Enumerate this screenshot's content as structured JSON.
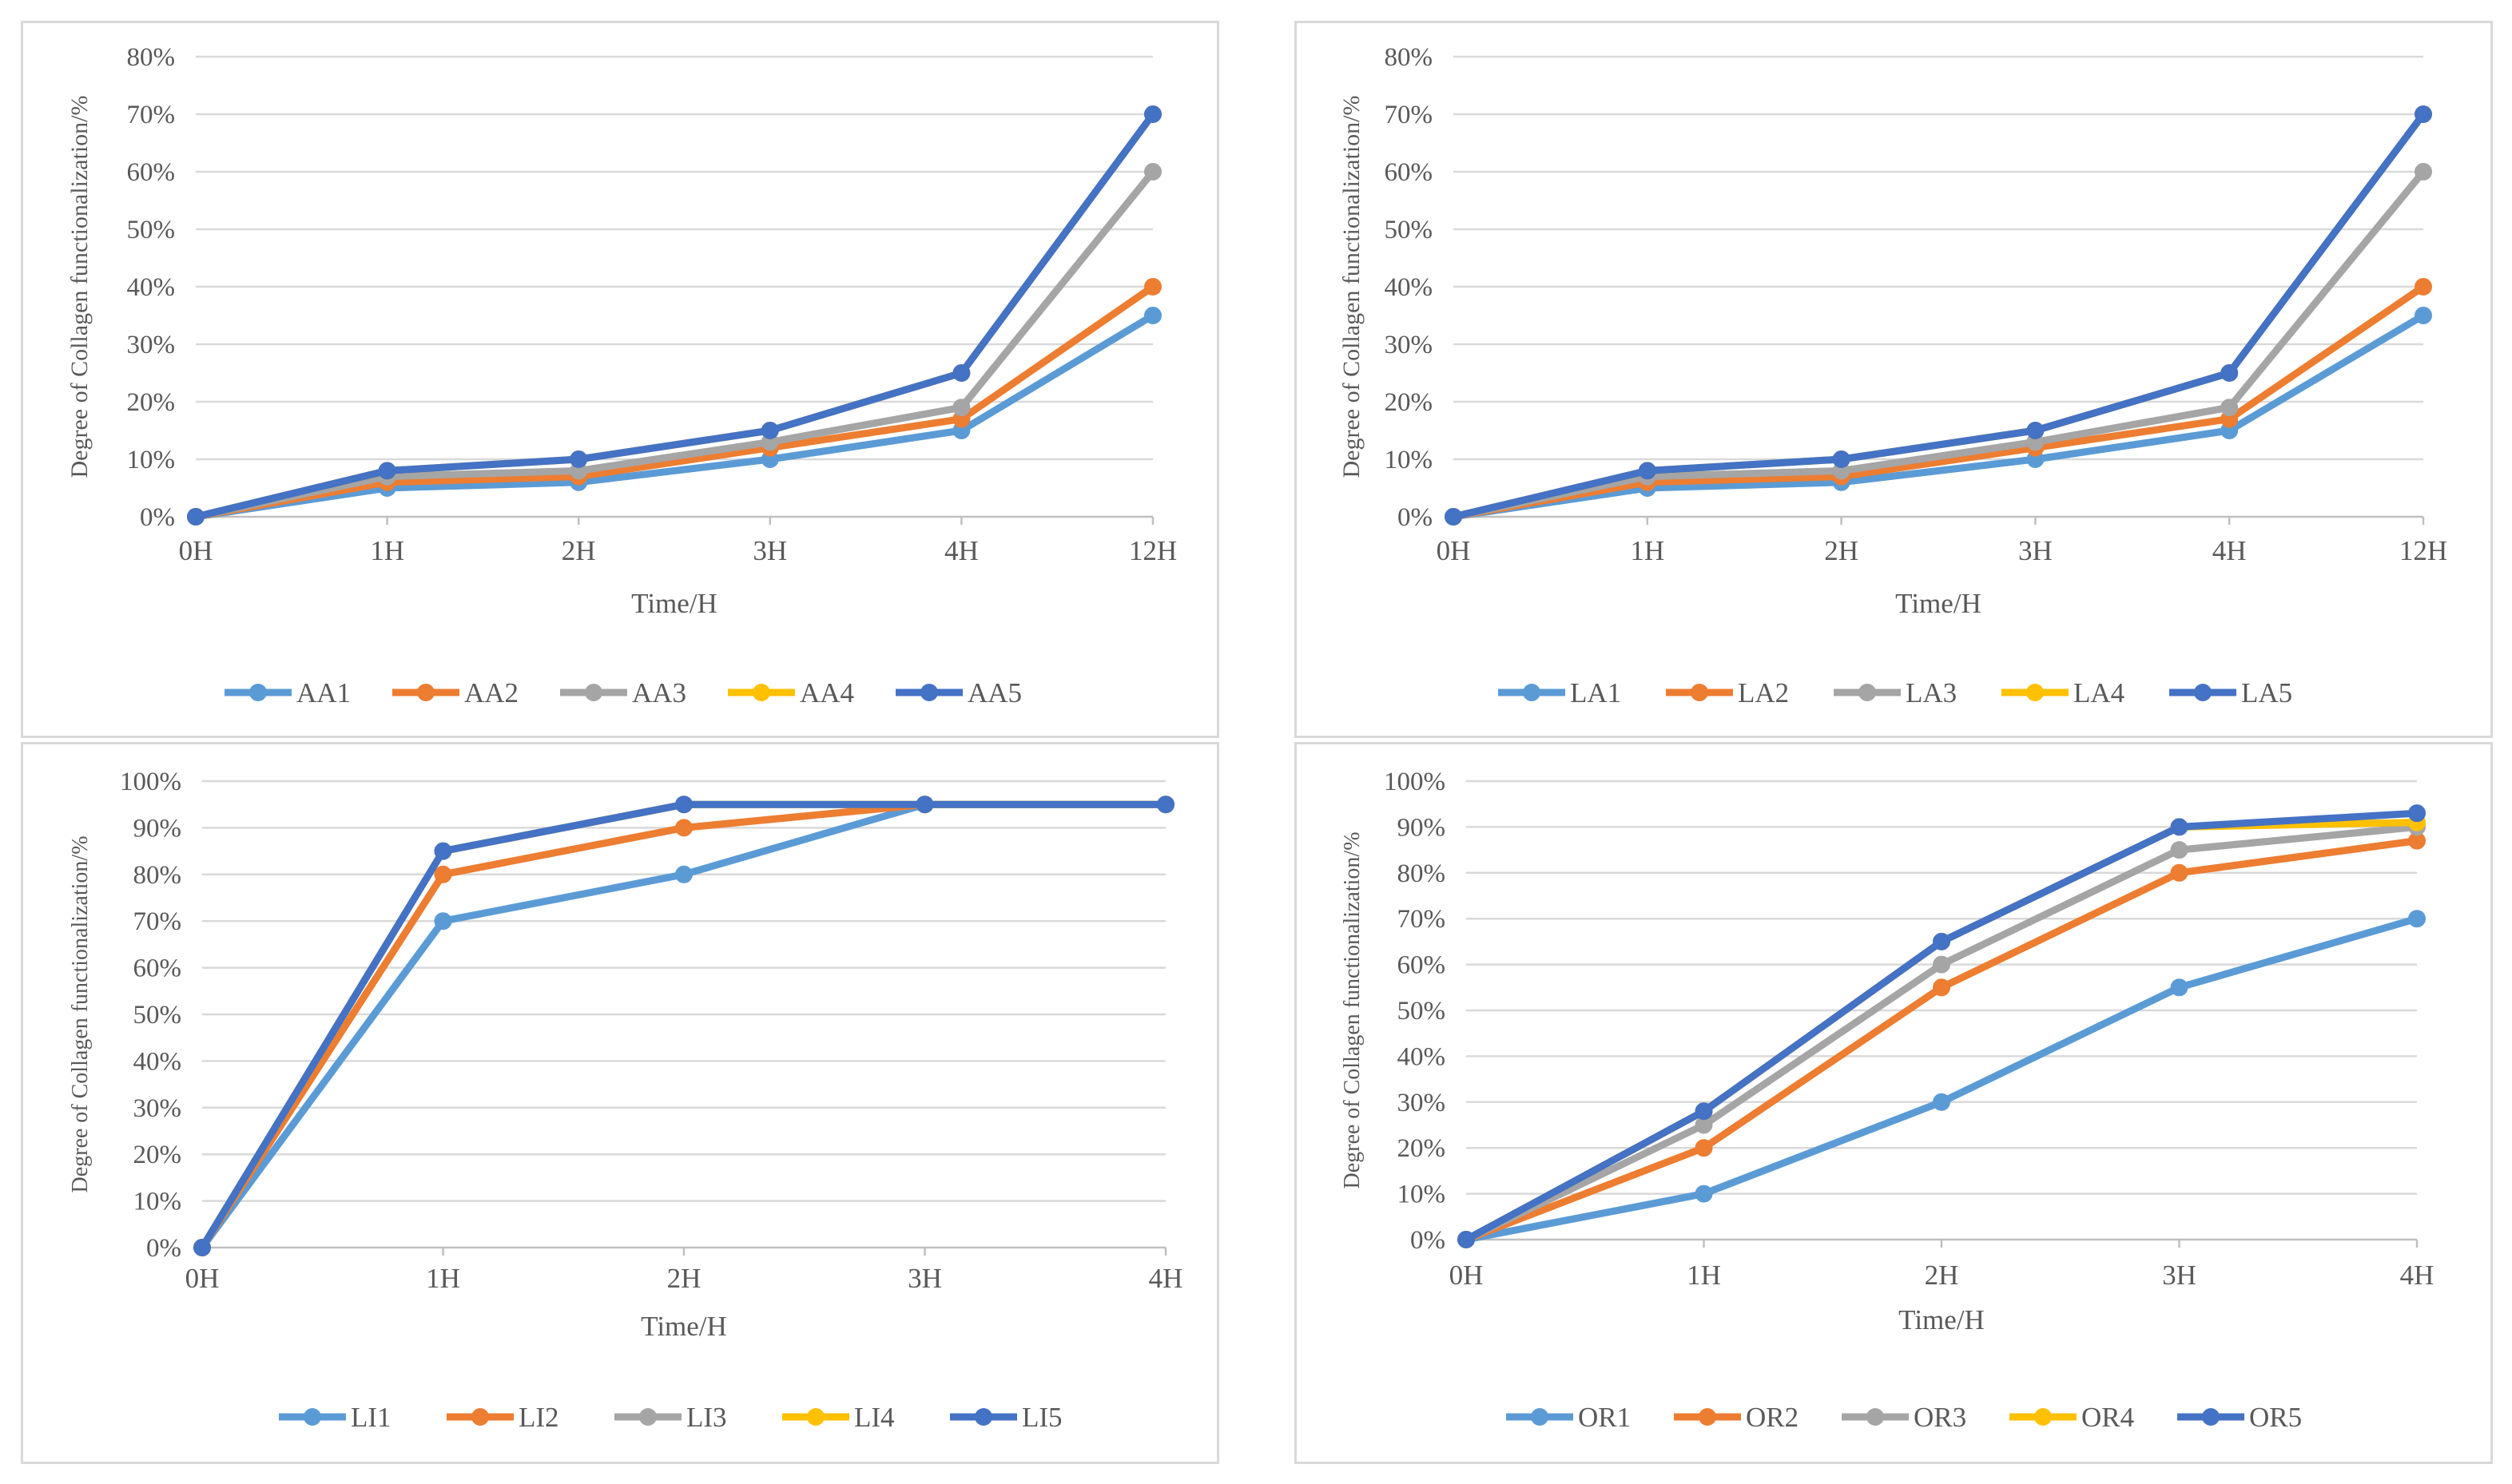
{
  "colors": [
    "#5B9BD5",
    "#ED7D31",
    "#A5A5A5",
    "#FFC000",
    "#4472C4"
  ],
  "charts": [
    {
      "type": "line",
      "xlabel": "Time/H",
      "ylabel": "Degree of Collagen functionalization/%",
      "x": [
        "0H",
        "1H",
        "2H",
        "3H",
        "4H",
        "12H"
      ],
      "yticks": [
        "0%",
        "10%",
        "20%",
        "30%",
        "40%",
        "50%",
        "60%",
        "70%",
        "80%"
      ],
      "ylim": [
        0,
        80
      ],
      "grid": true,
      "legend_position": "bottom",
      "series": [
        {
          "name": "AA1",
          "values": [
            0,
            5,
            6,
            10,
            15,
            35
          ]
        },
        {
          "name": "AA2",
          "values": [
            0,
            6,
            7,
            12,
            17,
            40
          ]
        },
        {
          "name": "AA3",
          "values": [
            0,
            7,
            8,
            13,
            19,
            60
          ]
        },
        {
          "name": "AA4",
          "values": [
            0,
            8,
            10,
            15,
            25,
            70
          ]
        },
        {
          "name": "AA5",
          "values": [
            0,
            8,
            10,
            15,
            25,
            70
          ]
        }
      ]
    },
    {
      "type": "line",
      "xlabel": "Time/H",
      "ylabel": "Degree of Collagen functionalization/%",
      "x": [
        "0H",
        "1H",
        "2H",
        "3H",
        "4H",
        "12H"
      ],
      "yticks": [
        "0%",
        "10%",
        "20%",
        "30%",
        "40%",
        "50%",
        "60%",
        "70%",
        "80%"
      ],
      "ylim": [
        0,
        80
      ],
      "grid": true,
      "legend_position": "bottom",
      "series": [
        {
          "name": "LA1",
          "values": [
            0,
            5,
            6,
            10,
            15,
            35
          ]
        },
        {
          "name": "LA2",
          "values": [
            0,
            6,
            7,
            12,
            17,
            40
          ]
        },
        {
          "name": "LA3",
          "values": [
            0,
            7,
            8,
            13,
            19,
            60
          ]
        },
        {
          "name": "LA4",
          "values": [
            0,
            8,
            10,
            15,
            25,
            70
          ]
        },
        {
          "name": "LA5",
          "values": [
            0,
            8,
            10,
            15,
            25,
            70
          ]
        }
      ]
    },
    {
      "type": "line",
      "xlabel": "Time/H",
      "ylabel": "Degree of Collagen functionalization/%",
      "x": [
        "0H",
        "1H",
        "2H",
        "3H",
        "4H"
      ],
      "yticks": [
        "0%",
        "10%",
        "20%",
        "30%",
        "40%",
        "50%",
        "60%",
        "70%",
        "80%",
        "90%",
        "100%"
      ],
      "ylim": [
        0,
        100
      ],
      "grid": true,
      "legend_position": "bottom",
      "series": [
        {
          "name": "LI1",
          "values": [
            0,
            70,
            80,
            95,
            95
          ]
        },
        {
          "name": "LI2",
          "values": [
            0,
            80,
            90,
            95,
            95
          ]
        },
        {
          "name": "LI3",
          "values": [
            0,
            85,
            95,
            95,
            95
          ]
        },
        {
          "name": "LI4",
          "values": [
            0,
            85,
            95,
            95,
            95
          ]
        },
        {
          "name": "LI5",
          "values": [
            0,
            85,
            95,
            95,
            95
          ]
        }
      ]
    },
    {
      "type": "line",
      "xlabel": "Time/H",
      "ylabel": "Degree of Collagen functionalization/%",
      "x": [
        "0H",
        "1H",
        "2H",
        "3H",
        "4H"
      ],
      "yticks": [
        "0%",
        "10%",
        "20%",
        "30%",
        "40%",
        "50%",
        "60%",
        "70%",
        "80%",
        "90%",
        "100%"
      ],
      "ylim": [
        0,
        100
      ],
      "grid": true,
      "legend_position": "bottom",
      "series": [
        {
          "name": "OR1",
          "values": [
            0,
            10,
            30,
            55,
            70
          ]
        },
        {
          "name": "OR2",
          "values": [
            0,
            20,
            55,
            80,
            87
          ]
        },
        {
          "name": "OR3",
          "values": [
            0,
            25,
            60,
            85,
            90
          ]
        },
        {
          "name": "OR4",
          "values": [
            0,
            28,
            65,
            90,
            91
          ]
        },
        {
          "name": "OR5",
          "values": [
            0,
            28,
            65,
            90,
            93
          ]
        }
      ]
    }
  ],
  "chart_data": [
    {
      "type": "line",
      "xlabel": "Time/H",
      "ylabel": "Degree of Collagen functionalization/%",
      "x": [
        "0H",
        "1H",
        "2H",
        "3H",
        "4H",
        "12H"
      ],
      "ylim": [
        0,
        80
      ],
      "series": [
        {
          "name": "AA1",
          "values": [
            0,
            5,
            6,
            10,
            15,
            35
          ]
        },
        {
          "name": "AA2",
          "values": [
            0,
            6,
            7,
            12,
            17,
            40
          ]
        },
        {
          "name": "AA3",
          "values": [
            0,
            7,
            8,
            13,
            19,
            60
          ]
        },
        {
          "name": "AA4",
          "values": [
            0,
            8,
            10,
            15,
            25,
            70
          ]
        },
        {
          "name": "AA5",
          "values": [
            0,
            8,
            10,
            15,
            25,
            70
          ]
        }
      ]
    },
    {
      "type": "line",
      "xlabel": "Time/H",
      "ylabel": "Degree of Collagen functionalization/%",
      "x": [
        "0H",
        "1H",
        "2H",
        "3H",
        "4H",
        "12H"
      ],
      "ylim": [
        0,
        80
      ],
      "series": [
        {
          "name": "LA1",
          "values": [
            0,
            5,
            6,
            10,
            15,
            35
          ]
        },
        {
          "name": "LA2",
          "values": [
            0,
            6,
            7,
            12,
            17,
            40
          ]
        },
        {
          "name": "LA3",
          "values": [
            0,
            7,
            8,
            13,
            19,
            60
          ]
        },
        {
          "name": "LA4",
          "values": [
            0,
            8,
            10,
            15,
            25,
            70
          ]
        },
        {
          "name": "LA5",
          "values": [
            0,
            8,
            10,
            15,
            25,
            70
          ]
        }
      ]
    },
    {
      "type": "line",
      "xlabel": "Time/H",
      "ylabel": "Degree of Collagen functionalization/%",
      "x": [
        "0H",
        "1H",
        "2H",
        "3H",
        "4H"
      ],
      "ylim": [
        0,
        100
      ],
      "series": [
        {
          "name": "LI1",
          "values": [
            0,
            70,
            80,
            95,
            95
          ]
        },
        {
          "name": "LI2",
          "values": [
            0,
            80,
            90,
            95,
            95
          ]
        },
        {
          "name": "LI3",
          "values": [
            0,
            85,
            95,
            95,
            95
          ]
        },
        {
          "name": "LI4",
          "values": [
            0,
            85,
            95,
            95,
            95
          ]
        },
        {
          "name": "LI5",
          "values": [
            0,
            85,
            95,
            95,
            95
          ]
        }
      ]
    },
    {
      "type": "line",
      "xlabel": "Time/H",
      "ylabel": "Degree of Collagen functionalization/%",
      "x": [
        "0H",
        "1H",
        "2H",
        "3H",
        "4H"
      ],
      "ylim": [
        0,
        100
      ],
      "series": [
        {
          "name": "OR1",
          "values": [
            0,
            10,
            30,
            55,
            70
          ]
        },
        {
          "name": "OR2",
          "values": [
            0,
            20,
            55,
            80,
            87
          ]
        },
        {
          "name": "OR3",
          "values": [
            0,
            25,
            60,
            85,
            90
          ]
        },
        {
          "name": "OR4",
          "values": [
            0,
            28,
            65,
            90,
            91
          ]
        },
        {
          "name": "OR5",
          "values": [
            0,
            28,
            65,
            90,
            93
          ]
        }
      ]
    }
  ]
}
